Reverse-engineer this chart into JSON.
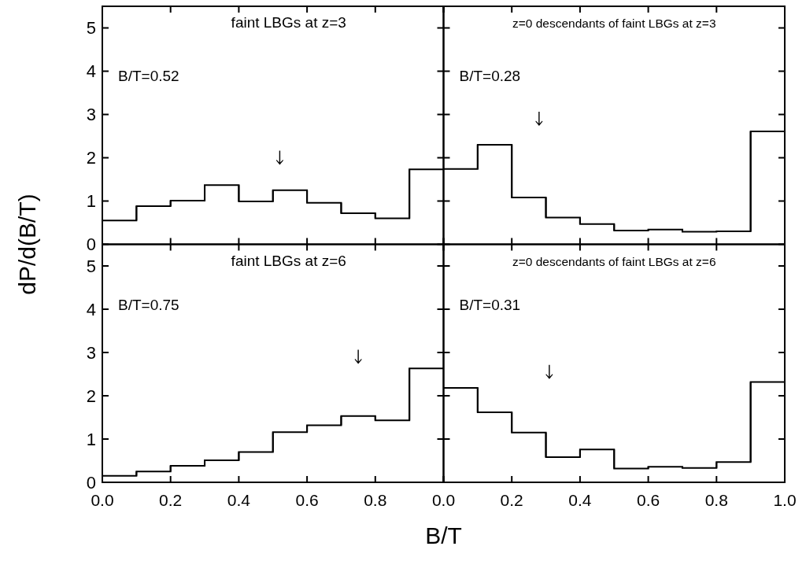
{
  "chart_data": [
    {
      "type": "histogram",
      "title": "faint LBGs at z=3",
      "ylabel": "dP/d(B/T)",
      "bins": [
        0,
        0.1,
        0.2,
        0.3,
        0.4,
        0.5,
        0.6,
        0.7,
        0.8,
        0.9,
        1.0
      ],
      "values": [
        0.55,
        0.88,
        1.01,
        1.37,
        0.99,
        1.25,
        0.96,
        0.72,
        0.6,
        1.73
      ],
      "color": "#000000",
      "xlim": [
        0,
        1
      ],
      "ylim": [
        0,
        5.5
      ],
      "xticks": [
        {
          "value": 0,
          "label": null
        },
        {
          "value": 0.2,
          "label": null
        },
        {
          "value": 0.4,
          "label": null
        },
        {
          "value": 0.6,
          "label": null
        },
        {
          "value": 0.8,
          "label": null
        },
        {
          "value": 1,
          "label": null
        }
      ],
      "yticks": [
        0,
        1,
        2,
        3,
        4,
        5
      ],
      "tick_labels": "y",
      "annotations": [
        "B/T=0.52"
      ],
      "series": [
        {
          "type": "scatter",
          "color": "#000000",
          "x": [
            0.52
          ],
          "values": [
            2.0
          ]
        }
      ]
    },
    {
      "type": "histogram",
      "title": "z=0 descendants of faint LBGs at z=3",
      "bins": [
        0,
        0.1,
        0.2,
        0.3,
        0.4,
        0.5,
        0.6,
        0.7,
        0.8,
        0.9,
        1.0
      ],
      "values": [
        1.74,
        2.3,
        1.08,
        0.62,
        0.47,
        0.32,
        0.34,
        0.29,
        0.3,
        2.61
      ],
      "color": "#000000",
      "xlim": [
        0,
        1
      ],
      "ylim": [
        0,
        5.5
      ],
      "xticks": [
        {
          "value": 0,
          "label": null
        },
        {
          "value": 0.2,
          "label": null
        },
        {
          "value": 0.4,
          "label": null
        },
        {
          "value": 0.6,
          "label": null
        },
        {
          "value": 0.8,
          "label": null
        },
        {
          "value": 1,
          "label": null
        }
      ],
      "yticks": [
        {
          "value": 0,
          "label": null
        },
        {
          "value": 1,
          "label": null
        },
        {
          "value": 2,
          "label": null
        },
        {
          "value": 3,
          "label": null
        },
        {
          "value": 4,
          "label": null
        },
        {
          "value": 5,
          "label": null
        }
      ],
      "tick_labels": false,
      "annotations": [
        "B/T=0.28"
      ],
      "series": [
        {
          "type": "scatter",
          "color": "#000000",
          "x": [
            0.28
          ],
          "values": [
            2.9
          ]
        }
      ]
    },
    {
      "type": "histogram",
      "title": "faint LBGs at z=6",
      "xlabel": "B/T",
      "bins": [
        0,
        0.1,
        0.2,
        0.3,
        0.4,
        0.5,
        0.6,
        0.7,
        0.8,
        0.9,
        1.0
      ],
      "values": [
        0.15,
        0.25,
        0.38,
        0.51,
        0.7,
        1.16,
        1.32,
        1.53,
        1.43,
        2.63
      ],
      "color": "#000000",
      "xlim": [
        0,
        1
      ],
      "ylim": [
        0,
        5.5
      ],
      "xticks": [
        {
          "value": 0,
          "label": "0.0"
        },
        {
          "value": 0.2,
          "label": "0.2"
        },
        {
          "value": 0.4,
          "label": "0.4"
        },
        {
          "value": 0.6,
          "label": "0.6"
        },
        {
          "value": 0.8,
          "label": "0.8"
        },
        {
          "value": 1,
          "label": null
        }
      ],
      "yticks": [
        0,
        1,
        2,
        3,
        4,
        5
      ],
      "annotations": [
        "B/T=0.75"
      ],
      "series": [
        {
          "type": "scatter",
          "color": "#000000",
          "x": [
            0.75
          ],
          "values": [
            2.9
          ]
        }
      ]
    },
    {
      "type": "histogram",
      "title": "z=0 descendants of faint LBGs at z=6",
      "bins": [
        0,
        0.1,
        0.2,
        0.3,
        0.4,
        0.5,
        0.6,
        0.7,
        0.8,
        0.9,
        1.0
      ],
      "values": [
        2.18,
        1.62,
        1.15,
        0.58,
        0.76,
        0.32,
        0.36,
        0.33,
        0.47,
        2.32
      ],
      "color": "#000000",
      "xlim": [
        0,
        1
      ],
      "ylim": [
        0,
        5.5
      ],
      "xticks": [
        {
          "value": 0,
          "label": "0.0"
        },
        {
          "value": 0.2,
          "label": "0.2"
        },
        {
          "value": 0.4,
          "label": "0.4"
        },
        {
          "value": 0.6,
          "label": "0.6"
        },
        {
          "value": 0.8,
          "label": "0.8"
        },
        {
          "value": 1,
          "label": "1.0"
        }
      ],
      "yticks": [
        {
          "value": 0,
          "label": null
        },
        {
          "value": 1,
          "label": null
        },
        {
          "value": 2,
          "label": null
        },
        {
          "value": 3,
          "label": null
        },
        {
          "value": 4,
          "label": null
        },
        {
          "value": 5,
          "label": null
        }
      ],
      "tick_labels": "x",
      "annotations": [
        "B/T=0.31"
      ],
      "series": [
        {
          "type": "scatter",
          "color": "#000000",
          "x": [
            0.31
          ],
          "values": [
            2.55
          ]
        }
      ]
    }
  ]
}
